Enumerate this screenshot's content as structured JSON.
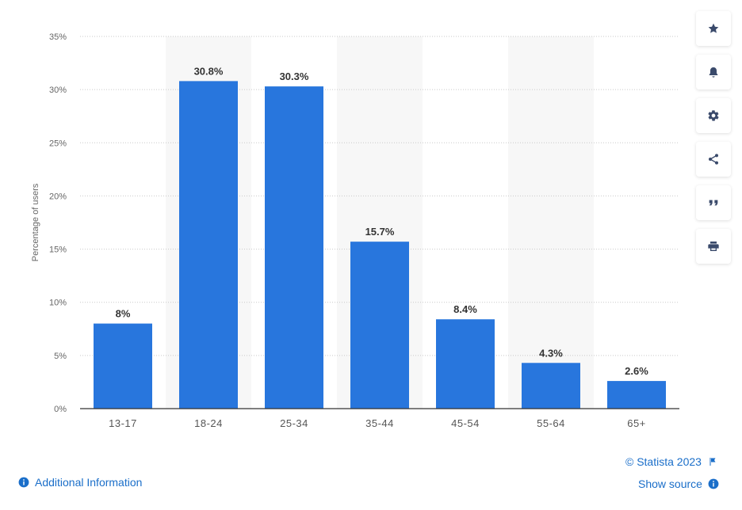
{
  "colors": {
    "bar": "#2876dd",
    "highlight_band": "#f7f7f7",
    "grid": "#c9c9c9",
    "axis": "#333333",
    "link": "#1a6ec9",
    "icon": "#3a4a6b"
  },
  "chart_data": {
    "type": "bar",
    "categories": [
      "13-17",
      "18-24",
      "25-34",
      "35-44",
      "45-54",
      "55-64",
      "65+"
    ],
    "values": [
      8,
      30.8,
      30.3,
      15.7,
      8.4,
      4.3,
      2.6
    ],
    "data_labels": [
      "8%",
      "30.8%",
      "30.3%",
      "15.7%",
      "8.4%",
      "4.3%",
      "2.6%"
    ],
    "ylabel": "Percentage of users",
    "xlabel": "",
    "ylim": [
      0,
      35
    ],
    "yticks": [
      0,
      5,
      10,
      15,
      20,
      25,
      30,
      35
    ],
    "ytick_labels": [
      "0%",
      "5%",
      "10%",
      "15%",
      "20%",
      "25%",
      "30%",
      "35%"
    ],
    "grid": true,
    "grid_style": "dotted",
    "legend": "none"
  },
  "toolbar": {
    "buttons": [
      {
        "name": "favorite-button",
        "icon": "star-icon"
      },
      {
        "name": "notification-button",
        "icon": "bell-icon"
      },
      {
        "name": "settings-button",
        "icon": "gear-icon"
      },
      {
        "name": "share-button",
        "icon": "share-icon"
      },
      {
        "name": "cite-button",
        "icon": "quote-icon"
      },
      {
        "name": "print-button",
        "icon": "print-icon"
      }
    ]
  },
  "footer": {
    "copyright": "© Statista 2023",
    "show_source": "Show source",
    "additional_info": "Additional Information"
  }
}
